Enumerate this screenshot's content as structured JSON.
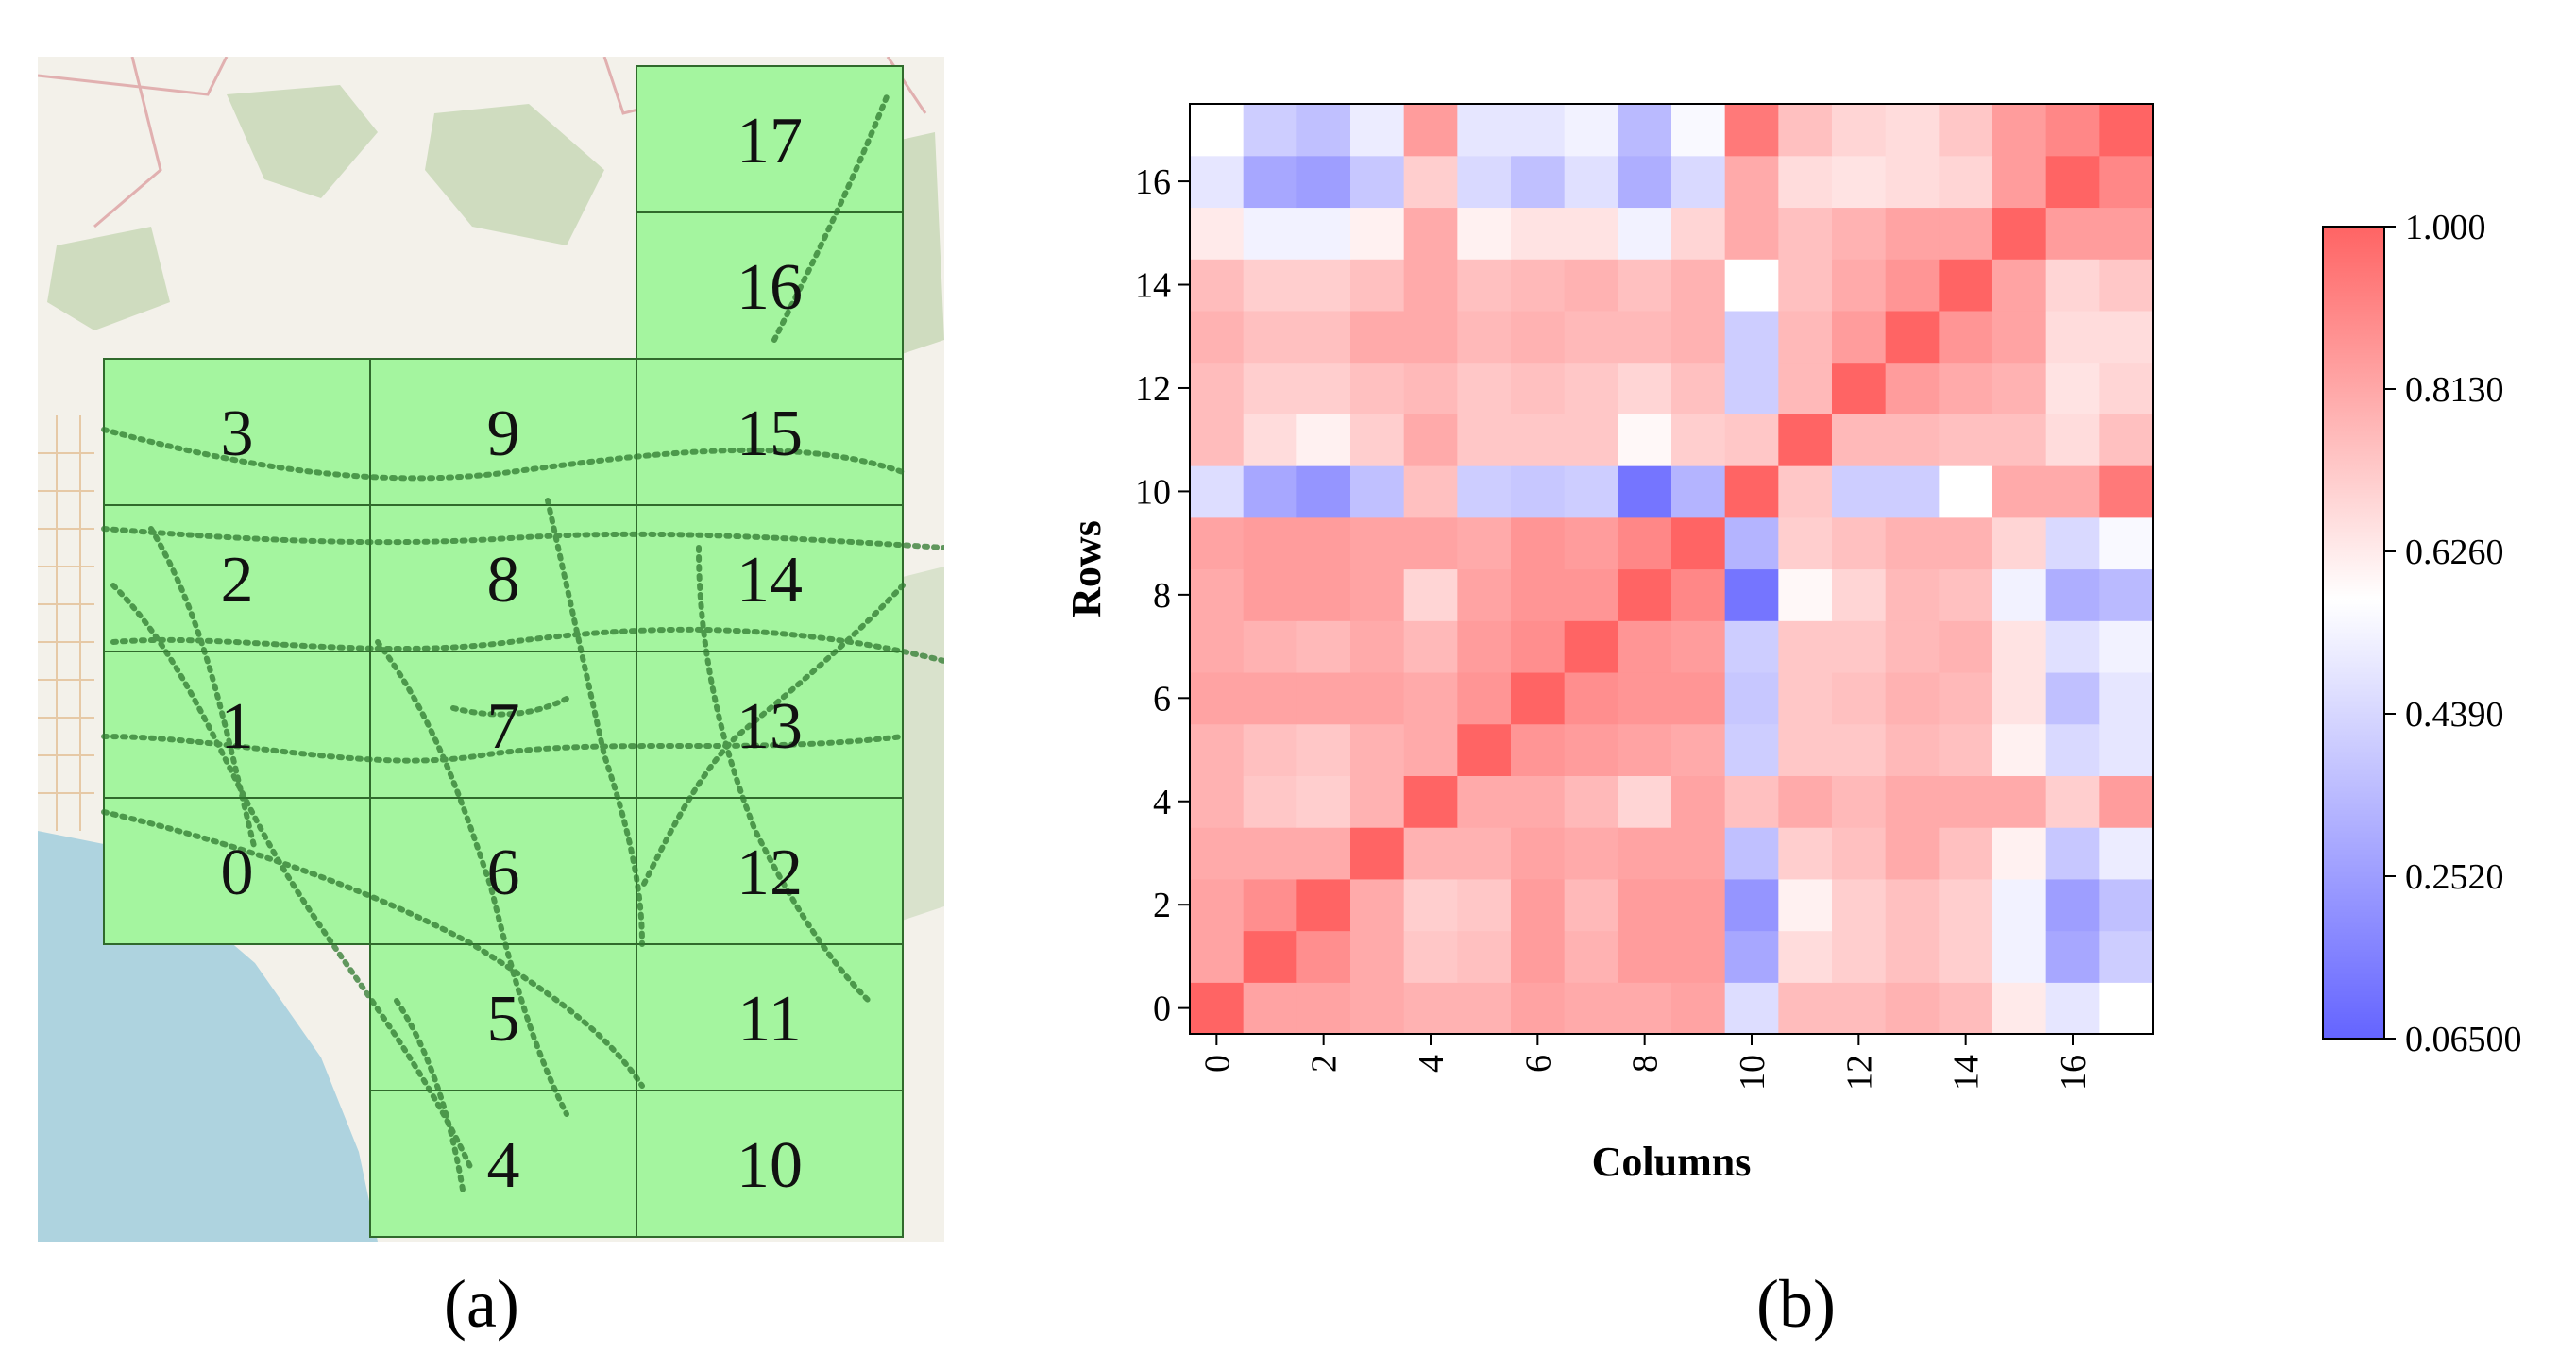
{
  "panel_a": {
    "caption": "(a)",
    "grid_labels": [
      "0",
      "1",
      "2",
      "3",
      "4",
      "5",
      "6",
      "7",
      "8",
      "9",
      "10",
      "11",
      "12",
      "13",
      "14",
      "15",
      "16",
      "17"
    ]
  },
  "panel_b": {
    "caption": "(b)"
  },
  "chart_data": {
    "type": "heatmap",
    "xlabel": "Columns",
    "ylabel": "Rows",
    "x_ticks": [
      "0",
      "2",
      "4",
      "6",
      "8",
      "10",
      "12",
      "14",
      "16"
    ],
    "y_ticks": [
      "0",
      "2",
      "4",
      "6",
      "8",
      "10",
      "12",
      "14",
      "16"
    ],
    "colorbar": {
      "min": 0.065,
      "max": 1.0,
      "tick_labels": [
        "1.000",
        "0.8130",
        "0.6260",
        "0.4390",
        "0.2520",
        "0.06500"
      ],
      "low_color": "#6464ff",
      "mid_color": "#ffffff",
      "high_color": "#ff6464"
    },
    "matrix": [
      [
        1.0,
        0.82,
        0.82,
        0.8,
        0.78,
        0.78,
        0.82,
        0.8,
        0.8,
        0.82,
        0.45,
        0.75,
        0.75,
        0.78,
        0.75,
        0.62,
        0.48,
        0.56
      ],
      [
        0.82,
        1.0,
        0.88,
        0.8,
        0.72,
        0.74,
        0.84,
        0.78,
        0.84,
        0.84,
        0.28,
        0.66,
        0.7,
        0.74,
        0.7,
        0.52,
        0.28,
        0.4
      ],
      [
        0.82,
        0.88,
        1.0,
        0.8,
        0.7,
        0.72,
        0.84,
        0.76,
        0.84,
        0.84,
        0.22,
        0.6,
        0.7,
        0.74,
        0.7,
        0.52,
        0.25,
        0.36
      ],
      [
        0.8,
        0.8,
        0.8,
        1.0,
        0.78,
        0.78,
        0.82,
        0.8,
        0.82,
        0.82,
        0.36,
        0.7,
        0.74,
        0.8,
        0.74,
        0.6,
        0.38,
        0.5
      ],
      [
        0.78,
        0.72,
        0.7,
        0.78,
        1.0,
        0.8,
        0.8,
        0.76,
        0.68,
        0.82,
        0.74,
        0.8,
        0.76,
        0.8,
        0.8,
        0.8,
        0.7,
        0.84
      ],
      [
        0.78,
        0.74,
        0.72,
        0.78,
        0.8,
        1.0,
        0.86,
        0.84,
        0.82,
        0.8,
        0.4,
        0.72,
        0.72,
        0.76,
        0.74,
        0.6,
        0.44,
        0.48
      ],
      [
        0.82,
        0.82,
        0.82,
        0.82,
        0.8,
        0.86,
        1.0,
        0.88,
        0.86,
        0.86,
        0.38,
        0.72,
        0.74,
        0.78,
        0.76,
        0.64,
        0.36,
        0.48
      ],
      [
        0.8,
        0.78,
        0.76,
        0.8,
        0.76,
        0.84,
        0.88,
        1.0,
        0.86,
        0.84,
        0.4,
        0.72,
        0.72,
        0.76,
        0.78,
        0.64,
        0.46,
        0.52
      ],
      [
        0.8,
        0.84,
        0.84,
        0.82,
        0.68,
        0.82,
        0.86,
        0.86,
        1.0,
        0.9,
        0.12,
        0.58,
        0.68,
        0.76,
        0.74,
        0.52,
        0.3,
        0.34
      ],
      [
        0.82,
        0.84,
        0.84,
        0.82,
        0.82,
        0.8,
        0.86,
        0.84,
        0.9,
        1.0,
        0.32,
        0.7,
        0.74,
        0.78,
        0.78,
        0.68,
        0.44,
        0.54
      ],
      [
        0.45,
        0.28,
        0.22,
        0.36,
        0.74,
        0.4,
        0.38,
        0.4,
        0.12,
        0.32,
        1.0,
        0.72,
        0.4,
        0.4,
        0.56,
        0.8,
        0.8,
        0.94
      ],
      [
        0.75,
        0.66,
        0.6,
        0.7,
        0.8,
        0.72,
        0.72,
        0.72,
        0.58,
        0.7,
        0.72,
        1.0,
        0.76,
        0.76,
        0.74,
        0.74,
        0.66,
        0.74
      ],
      [
        0.75,
        0.7,
        0.7,
        0.74,
        0.76,
        0.72,
        0.74,
        0.72,
        0.68,
        0.74,
        0.4,
        0.76,
        1.0,
        0.84,
        0.8,
        0.78,
        0.64,
        0.68
      ],
      [
        0.78,
        0.74,
        0.74,
        0.8,
        0.8,
        0.76,
        0.78,
        0.76,
        0.76,
        0.78,
        0.4,
        0.76,
        0.84,
        1.0,
        0.86,
        0.82,
        0.66,
        0.66
      ],
      [
        0.75,
        0.7,
        0.7,
        0.74,
        0.8,
        0.74,
        0.76,
        0.78,
        0.74,
        0.78,
        0.56,
        0.74,
        0.8,
        0.86,
        1.0,
        0.82,
        0.68,
        0.72
      ],
      [
        0.62,
        0.52,
        0.52,
        0.6,
        0.8,
        0.6,
        0.64,
        0.64,
        0.52,
        0.68,
        0.8,
        0.74,
        0.78,
        0.82,
        0.82,
        1.0,
        0.84,
        0.84
      ],
      [
        0.48,
        0.28,
        0.25,
        0.38,
        0.7,
        0.44,
        0.36,
        0.46,
        0.3,
        0.44,
        0.8,
        0.66,
        0.64,
        0.66,
        0.68,
        0.84,
        1.0,
        0.9
      ],
      [
        0.56,
        0.4,
        0.36,
        0.5,
        0.84,
        0.48,
        0.48,
        0.52,
        0.34,
        0.54,
        0.94,
        0.74,
        0.68,
        0.66,
        0.72,
        0.84,
        0.9,
        1.0
      ]
    ]
  }
}
